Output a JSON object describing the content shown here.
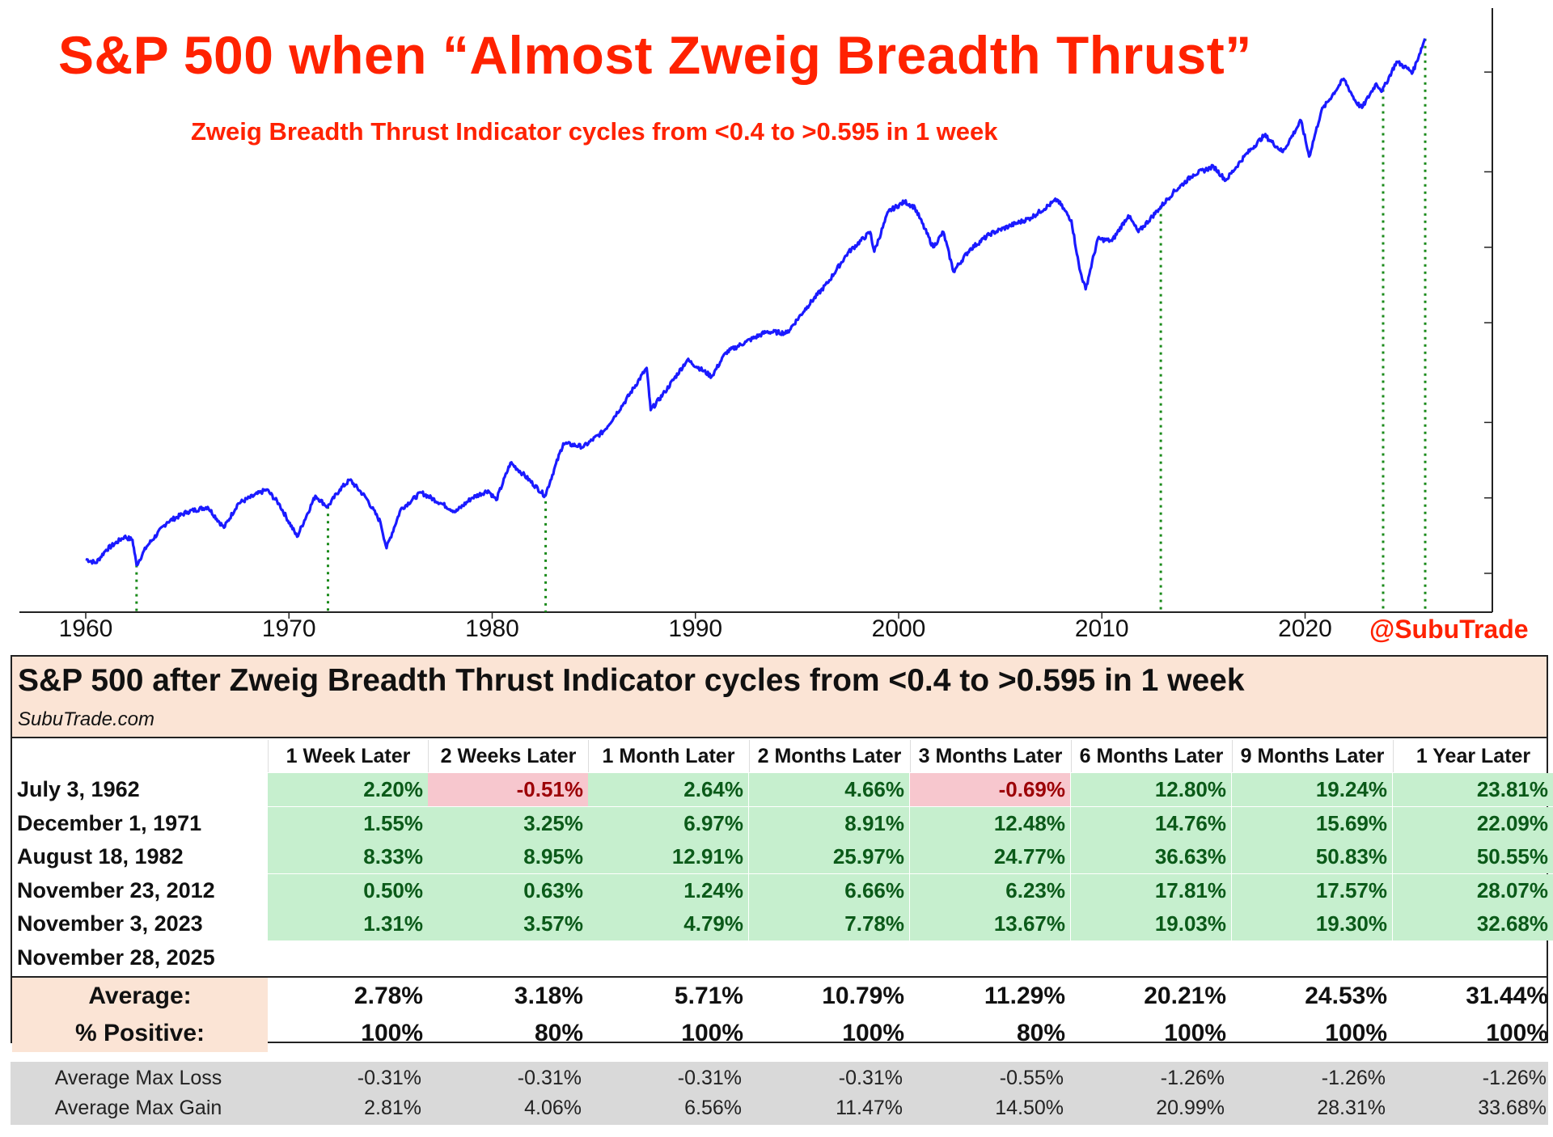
{
  "chart_data": {
    "type": "line",
    "title": "S&P 500 when “Almost Zweig Breadth Thrust”",
    "subtitle": "Zweig Breadth Thrust Indicator cycles from <0.4 to >0.595 in 1 week",
    "series": [
      {
        "color": "#1a1aff",
        "points": [
          [
            1960.0,
            57.0
          ],
          [
            1960.5,
            55.0
          ],
          [
            1961.0,
            62.0
          ],
          [
            1961.9,
            70.0
          ],
          [
            1962.3,
            68.0
          ],
          [
            1962.5,
            54.0
          ],
          [
            1963.0,
            64.0
          ],
          [
            1964.0,
            80.0
          ],
          [
            1965.0,
            88.0
          ],
          [
            1966.0,
            92.0
          ],
          [
            1966.8,
            76.0
          ],
          [
            1967.5,
            95.0
          ],
          [
            1968.9,
            108.0
          ],
          [
            1969.5,
            95.0
          ],
          [
            1970.4,
            70.0
          ],
          [
            1971.3,
            102.0
          ],
          [
            1971.9,
            92.0
          ],
          [
            1972.5,
            108.0
          ],
          [
            1973.0,
            118.0
          ],
          [
            1973.8,
            100.0
          ],
          [
            1974.5,
            80.0
          ],
          [
            1974.8,
            63.0
          ],
          [
            1975.5,
            90.0
          ],
          [
            1976.5,
            105.0
          ],
          [
            1977.5,
            95.0
          ],
          [
            1978.2,
            88.0
          ],
          [
            1979.0,
            100.0
          ],
          [
            1979.8,
            107.0
          ],
          [
            1980.2,
            98.0
          ],
          [
            1980.9,
            138.0
          ],
          [
            1981.5,
            125.0
          ],
          [
            1982.6,
            102.0
          ],
          [
            1983.5,
            165.0
          ],
          [
            1984.5,
            160.0
          ],
          [
            1985.5,
            185.0
          ],
          [
            1986.5,
            240.0
          ],
          [
            1987.6,
            330.0
          ],
          [
            1987.8,
            224.0
          ],
          [
            1988.5,
            265.0
          ],
          [
            1989.6,
            355.0
          ],
          [
            1990.8,
            305.0
          ],
          [
            1991.5,
            380.0
          ],
          [
            1992.5,
            420.0
          ],
          [
            1993.5,
            460.0
          ],
          [
            1994.5,
            455.0
          ],
          [
            1995.5,
            580.0
          ],
          [
            1996.5,
            720.0
          ],
          [
            1997.5,
            950.0
          ],
          [
            1998.6,
            1150.0
          ],
          [
            1998.8,
            960.0
          ],
          [
            1999.5,
            1390.0
          ],
          [
            2000.3,
            1520.0
          ],
          [
            2000.8,
            1440.0
          ],
          [
            2001.7,
            1000.0
          ],
          [
            2002.2,
            1150.0
          ],
          [
            2002.7,
            800.0
          ],
          [
            2003.5,
            980.0
          ],
          [
            2004.5,
            1130.0
          ],
          [
            2005.5,
            1220.0
          ],
          [
            2006.5,
            1310.0
          ],
          [
            2007.8,
            1550.0
          ],
          [
            2008.5,
            1280.0
          ],
          [
            2008.9,
            820.0
          ],
          [
            2009.2,
            680.0
          ],
          [
            2009.8,
            1080.0
          ],
          [
            2010.5,
            1060.0
          ],
          [
            2011.3,
            1340.0
          ],
          [
            2011.8,
            1150.0
          ],
          [
            2012.8,
            1420.0
          ],
          [
            2013.5,
            1650.0
          ],
          [
            2014.5,
            1950.0
          ],
          [
            2015.5,
            2100.0
          ],
          [
            2016.1,
            1850.0
          ],
          [
            2017.0,
            2300.0
          ],
          [
            2018.0,
            2800.0
          ],
          [
            2018.9,
            2400.0
          ],
          [
            2019.8,
            3200.0
          ],
          [
            2020.2,
            2300.0
          ],
          [
            2020.8,
            3500.0
          ],
          [
            2021.9,
            4700.0
          ],
          [
            2022.5,
            3800.0
          ],
          [
            2022.8,
            3600.0
          ],
          [
            2023.5,
            4500.0
          ],
          [
            2023.8,
            4200.0
          ],
          [
            2024.5,
            5500.0
          ],
          [
            2025.3,
            5000.0
          ],
          [
            2025.9,
            6800.0
          ]
        ]
      }
    ],
    "signal_dates": [
      1962.5,
      1971.92,
      1982.63,
      2012.9,
      2023.84,
      2025.91
    ],
    "x_ticks": [
      1960,
      1970,
      1980,
      1990,
      2000,
      2010,
      2020
    ],
    "xlim": [
      1959.7,
      2027.0
    ],
    "ylim": [
      35,
      9000
    ],
    "y_scale": "log",
    "ytick_marks": [
      50,
      100,
      200,
      500,
      1000,
      2000,
      5000
    ],
    "grid": false,
    "watermark": "@SubuTrade"
  },
  "table": {
    "title": "S&P 500 after Zweig Breadth Thrust Indicator cycles from <0.4 to >0.595 in 1 week",
    "site": "SubuTrade.com",
    "columns": [
      "1 Week Later",
      "2 Weeks Later",
      "1 Month Later",
      "2 Months Later",
      "3 Months Later",
      "6 Months Later",
      "9 Months Later",
      "1 Year Later"
    ],
    "rows": [
      {
        "date": "July 3, 1962",
        "values": [
          "2.20%",
          "-0.51%",
          "2.64%",
          "4.66%",
          "-0.69%",
          "12.80%",
          "19.24%",
          "23.81%"
        ]
      },
      {
        "date": "December 1, 1971",
        "values": [
          "1.55%",
          "3.25%",
          "6.97%",
          "8.91%",
          "12.48%",
          "14.76%",
          "15.69%",
          "22.09%"
        ]
      },
      {
        "date": "August 18, 1982",
        "values": [
          "8.33%",
          "8.95%",
          "12.91%",
          "25.97%",
          "24.77%",
          "36.63%",
          "50.83%",
          "50.55%"
        ]
      },
      {
        "date": "November 23, 2012",
        "values": [
          "0.50%",
          "0.63%",
          "1.24%",
          "6.66%",
          "6.23%",
          "17.81%",
          "17.57%",
          "28.07%"
        ]
      },
      {
        "date": "November 3, 2023",
        "values": [
          "1.31%",
          "3.57%",
          "4.79%",
          "7.78%",
          "13.67%",
          "19.03%",
          "19.30%",
          "32.68%"
        ]
      },
      {
        "date": "November 28, 2025",
        "values": [
          "",
          "",
          "",
          "",
          "",
          "",
          "",
          ""
        ]
      }
    ],
    "average_label": "Average:",
    "average": [
      "2.78%",
      "3.18%",
      "5.71%",
      "10.79%",
      "11.29%",
      "20.21%",
      "24.53%",
      "31.44%"
    ],
    "positive_label": "% Positive:",
    "positive": [
      "100%",
      "80%",
      "100%",
      "100%",
      "80%",
      "100%",
      "100%",
      "100%"
    ],
    "max_loss_label": "Average Max Loss",
    "max_loss": [
      "-0.31%",
      "-0.31%",
      "-0.31%",
      "-0.31%",
      "-0.55%",
      "-1.26%",
      "-1.26%",
      "-1.26%"
    ],
    "max_gain_label": "Average Max Gain",
    "max_gain": [
      "2.81%",
      "4.06%",
      "6.56%",
      "11.47%",
      "14.50%",
      "20.99%",
      "28.31%",
      "33.68%"
    ]
  },
  "colors": {
    "title": "#ff2200",
    "line": "#1a1aff",
    "signal_line": "#1a8a1a",
    "positive_bg": "#c6efce",
    "positive_text": "#0b5a19",
    "negative_bg": "#f7c7ce",
    "negative_text": "#9c0006",
    "header_bg": "#fbe4d5",
    "stats_bg": "#d9d9d9"
  }
}
